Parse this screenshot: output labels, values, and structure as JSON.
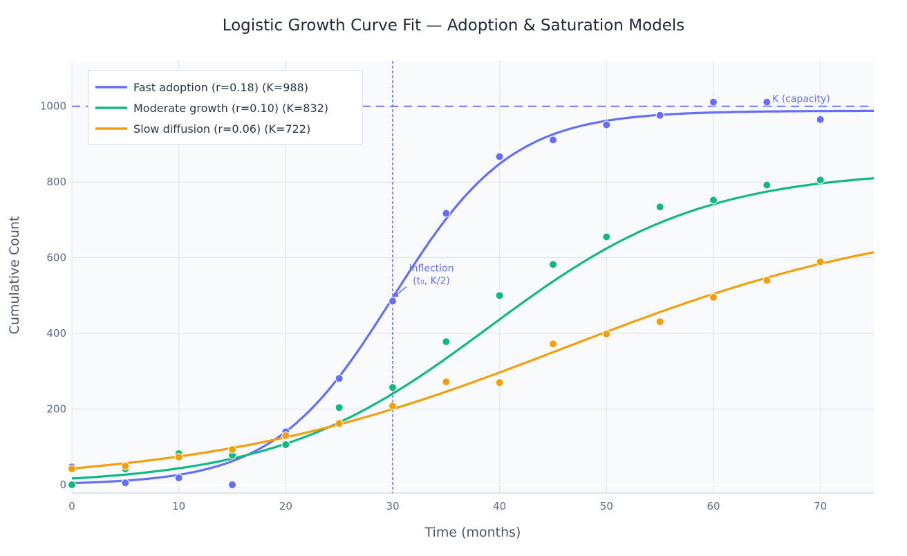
{
  "chart_data": {
    "type": "line",
    "title": "Logistic Growth Curve Fit — Adoption & Saturation Models",
    "xlabel": "Time (months)",
    "ylabel": "Cumulative Count",
    "xlim": [
      0,
      75
    ],
    "ylim": [
      -22,
      1120
    ],
    "xticks": [
      0,
      10,
      20,
      30,
      40,
      50,
      60,
      70
    ],
    "yticks": [
      0,
      200,
      400,
      600,
      800,
      1000
    ],
    "grid": true,
    "legend_position": "top-left",
    "series": [
      {
        "name": "Fast adoption (r=0.18)  (K=988)",
        "color": "#636efa",
        "model": {
          "K": 988,
          "r": 0.18,
          "t0": 30
        },
        "points_x": [
          0,
          5,
          10,
          15,
          20,
          25,
          30,
          35,
          40,
          45,
          50,
          55,
          60,
          65,
          70
        ],
        "points_y": [
          47,
          5,
          18,
          0,
          140,
          281,
          485,
          717,
          867,
          911,
          951,
          976,
          1011,
          1011,
          965
        ]
      },
      {
        "name": "Moderate growth (r=0.10)  (K=832)",
        "color": "#10b981",
        "model": {
          "K": 832,
          "r": 0.1,
          "t0": 39
        },
        "points_x": [
          0,
          5,
          10,
          15,
          20,
          25,
          30,
          35,
          40,
          45,
          50,
          55,
          60,
          65,
          70
        ],
        "points_y": [
          0,
          42,
          82,
          78,
          106,
          204,
          257,
          378,
          500,
          582,
          655,
          734,
          752,
          792,
          805
        ]
      },
      {
        "name": "Slow diffusion (r=0.06)  (K=722)",
        "color": "#f59e0b",
        "model": {
          "K": 722,
          "r": 0.06,
          "t0": 46
        },
        "points_x": [
          0,
          5,
          10,
          15,
          20,
          25,
          30,
          35,
          40,
          45,
          50,
          55,
          60,
          65,
          70
        ],
        "points_y": [
          42,
          49,
          73,
          93,
          130,
          162,
          208,
          272,
          270,
          372,
          398,
          431,
          495,
          540,
          589
        ]
      }
    ],
    "reference_lines": {
      "capacity": {
        "y": 1000,
        "label": "K (capacity)",
        "color": "#636efa"
      },
      "inflection": {
        "x": 30,
        "label_line1": "Inflection",
        "label_line2": "(t₀, K/2)",
        "target_y": 494,
        "color": "#636efa"
      }
    }
  }
}
